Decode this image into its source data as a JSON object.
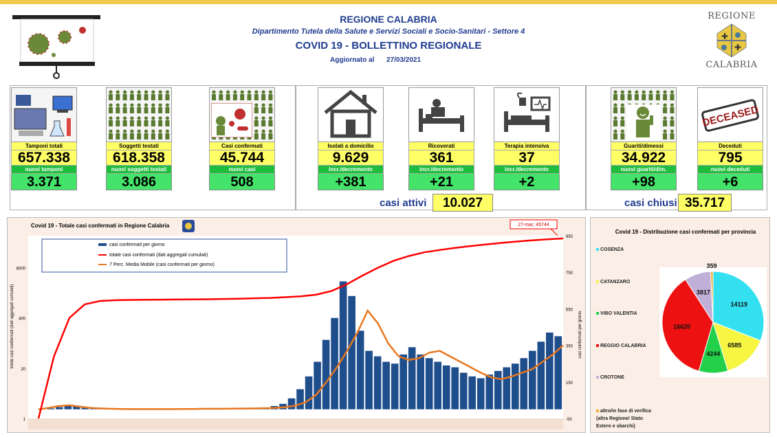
{
  "header": {
    "region": "REGIONE CALABRIA",
    "department": "Dipartimento Tutela della Salute e Servizi Sociali e Socio-Sanitari - Settore 4",
    "bulletin": "COVID 19 - BOLLETTINO REGIONALE",
    "updated_label": "Aggiornato al",
    "updated_date": "27/03/2021",
    "logo_top": "REGIONE",
    "logo_bottom": "CALABRIA"
  },
  "cards": [
    {
      "label": "Tamponi totali",
      "value": "657.338",
      "sub": "nuovi tamponi",
      "delta": "3.371",
      "icon": "lab-icon"
    },
    {
      "label": "Soggetti testati",
      "value": "618.358",
      "sub": "nuovi soggetti testati",
      "delta": "3.086",
      "icon": "people-grid-icon"
    },
    {
      "label": "Casi confermati",
      "value": "45.744",
      "sub": "nuovi casi",
      "delta": "508",
      "icon": "virus-person-icon"
    },
    {
      "label": "Isolati a domicilio",
      "value": "9.629",
      "sub": "incr./decremento",
      "delta": "+381",
      "icon": "house-icon"
    },
    {
      "label": "Ricoverati",
      "value": "361",
      "sub": "incr./decremento",
      "delta": "+21",
      "icon": "hospital-bed-icon"
    },
    {
      "label": "Terapia intensiva",
      "value": "37",
      "sub": "incr./decremento",
      "delta": "+2",
      "icon": "icu-icon"
    },
    {
      "label": "Guariti/dimessi",
      "value": "34.922",
      "sub": "nuovi guariti/dim.",
      "delta": "+98",
      "icon": "recovered-icon"
    },
    {
      "label": "Deceduti",
      "value": "795",
      "sub": "nuovi deceduti",
      "delta": "+6",
      "icon": "deceased-stamp-icon"
    }
  ],
  "deceased_stamp": "DECEASED",
  "summary": {
    "attivi_label": "casi attivi",
    "attivi_value": "10.027",
    "chiusi_label": "casi chiusi",
    "chiusi_value": "35.717"
  },
  "colors": {
    "yellow": "#ffff66",
    "green_label": "#1fbd3d",
    "green_value": "#44e36a",
    "bar_blue": "#1f4e8c",
    "line_red": "#ff0000",
    "line_orange": "#e8771e",
    "title_blue": "#1f3b8f"
  },
  "chart_data": [
    {
      "type": "bar",
      "title": "Covid 19 - Totale casi confermati in Regione Calabria",
      "annotation": "27-mar; 45744",
      "ylabel_left": "totale casi confermati (dati aggregati cumulati)",
      "ylabel_right": "casi confermati per giorno",
      "left_ticks": [
        "8000",
        "400",
        "20",
        "1"
      ],
      "right_ticks": [
        "950",
        "750",
        "550",
        "350",
        "150",
        "-50"
      ],
      "legend": [
        "casi confermati per giorno",
        "totale casi confermati (dati aggregati cumulati)",
        "7 Perc. Media Mobile (casi confermati per giorno)"
      ],
      "series": [
        {
          "name": "casi confermati per giorno",
          "kind": "bar",
          "values_sampled": [
            0,
            5,
            12,
            25,
            20,
            10,
            6,
            4,
            3,
            2,
            1,
            1,
            1,
            1,
            1,
            1,
            2,
            2,
            3,
            4,
            3,
            3,
            4,
            5,
            6,
            8,
            10,
            18,
            30,
            60,
            110,
            180,
            260,
            380,
            500,
            700,
            620,
            430,
            320,
            290,
            260,
            250,
            300,
            340,
            300,
            280,
            260,
            240,
            230,
            200,
            180,
            170,
            190,
            210,
            230,
            250,
            280,
            320,
            370,
            420,
            400
          ]
        },
        {
          "name": "totale casi confermati (dati aggregati cumulati)",
          "kind": "line",
          "values_sampled": [
            1,
            40,
            400,
            900,
            1100,
            1150,
            1170,
            1180,
            1190,
            1200,
            1210,
            1220,
            1240,
            1260,
            1290,
            1320,
            1380,
            1450,
            1600,
            2000,
            3000,
            5000,
            8000,
            12000,
            16000,
            20000,
            23000,
            26000,
            29000,
            32000,
            35000,
            38000,
            41000,
            43500,
            45744
          ]
        },
        {
          "name": "7 Perc. Media Mobile (casi confermati per giorno)",
          "kind": "line",
          "values_sampled": [
            0,
            8,
            18,
            22,
            15,
            8,
            5,
            3,
            2,
            1,
            1,
            1,
            1,
            1,
            2,
            2,
            3,
            3,
            3,
            4,
            4,
            5,
            6,
            8,
            12,
            20,
            40,
            80,
            150,
            230,
            320,
            420,
            540,
            470,
            360,
            290,
            270,
            280,
            310,
            320,
            290,
            260,
            230,
            200,
            175,
            165,
            180,
            200,
            220,
            260,
            300,
            350
          ]
        }
      ]
    },
    {
      "type": "pie",
      "title": "Covid 19 - Distribuzione casi confermati per provincia",
      "categories": [
        "COSENZA",
        "CATANZARO",
        "VIBO VALENTIA",
        "REGGIO CALABRIA",
        "CROTONE",
        "altro/in fase di verifica (altra Regione/ Stato Estero e sbarchi)"
      ],
      "values": [
        14119,
        6585,
        4244,
        16620,
        3817,
        359
      ],
      "colors": [
        "#33e0f0",
        "#f5f542",
        "#22d04a",
        "#ee1111",
        "#c0b0d8",
        "#f0b030"
      ]
    }
  ]
}
